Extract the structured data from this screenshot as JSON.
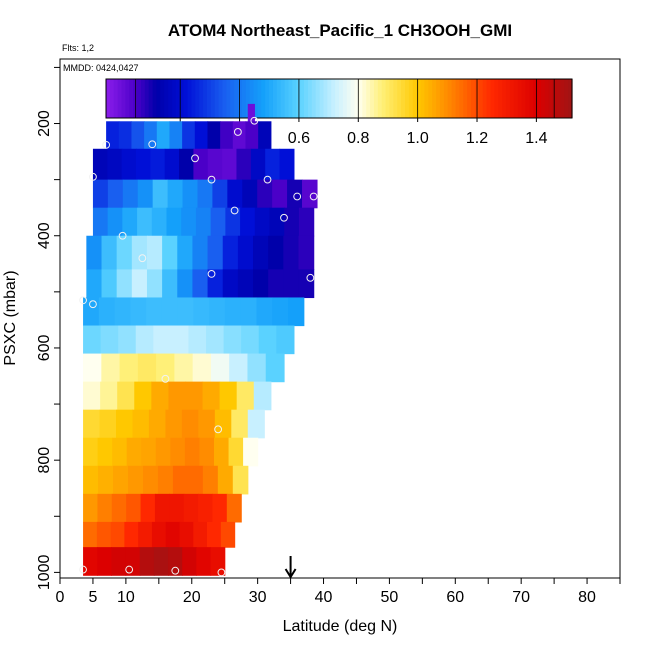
{
  "chart_data": {
    "type": "heatmap",
    "title": "ATOM4 Northeast_Pacific_1 CH3OOH_GMI",
    "annotations": {
      "flights": "Flts: 1,2",
      "dates": "MMDD: 0424,0427"
    },
    "xlabel": "Latitude (deg N)",
    "ylabel": "PSXC (mbar)",
    "xlim": [
      0,
      85
    ],
    "ylim": [
      1010,
      85
    ],
    "x_ticks": [
      0,
      5,
      10,
      20,
      30,
      40,
      50,
      60,
      70,
      80
    ],
    "x_tick_labels": [
      "0",
      "5",
      "10",
      "20",
      "30",
      "40",
      "50",
      "60",
      "70",
      "80"
    ],
    "y_ticks": [
      200,
      400,
      600,
      800,
      1000
    ],
    "y_tick_labels": [
      "200",
      "400",
      "600",
      "800",
      "1000"
    ],
    "colorbar": {
      "range": [
        -0.05,
        1.52
      ],
      "ticks": [
        0.2,
        0.4,
        0.6,
        0.8,
        1.0,
        1.2,
        1.4
      ],
      "tick_labels": [
        "0.2",
        "0.4",
        "0.6",
        "0.8",
        "1.0",
        "1.2",
        "1.4"
      ]
    },
    "marker": {
      "latitude": 35,
      "symbol": "down-arrow"
    },
    "layers": [
      {
        "p_top": 165,
        "p_bot": 196,
        "x0": 28.5,
        "x1": 29.5,
        "values": [
          0.0
        ]
      },
      {
        "p_top": 196,
        "p_bot": 245,
        "x0": 7.0,
        "x1": 32.0,
        "values": [
          0.25,
          0.27,
          0.33,
          0.4,
          0.5,
          0.42,
          0.28,
          0.22,
          0.12,
          0.06,
          0.02,
          0.05,
          0.15
        ]
      },
      {
        "p_top": 245,
        "p_bot": 300,
        "x0": 5.0,
        "x1": 35.5,
        "values": [
          0.15,
          0.17,
          0.2,
          0.22,
          0.24,
          0.2,
          0.12,
          0.05,
          0.03,
          0.02,
          0.08,
          0.18,
          0.25,
          0.22
        ]
      },
      {
        "p_top": 300,
        "p_bot": 350,
        "x0": 5.0,
        "x1": 39.0,
        "values": [
          0.3,
          0.35,
          0.4,
          0.45,
          0.55,
          0.5,
          0.45,
          0.4,
          0.3,
          0.2,
          0.15,
          0.08,
          0.05,
          0.1,
          0.03
        ]
      },
      {
        "p_top": 350,
        "p_bot": 400,
        "x0": 5.0,
        "x1": 38.5,
        "values": [
          0.4,
          0.45,
          0.5,
          0.55,
          0.52,
          0.48,
          0.45,
          0.42,
          0.35,
          0.28,
          0.22,
          0.18,
          0.15,
          0.1,
          0.08
        ]
      },
      {
        "p_top": 400,
        "p_bot": 460,
        "x0": 4.0,
        "x1": 38.5,
        "values": [
          0.45,
          0.55,
          0.62,
          0.68,
          0.7,
          0.6,
          0.5,
          0.42,
          0.35,
          0.25,
          0.2,
          0.15,
          0.12,
          0.1,
          0.08
        ]
      },
      {
        "p_top": 460,
        "p_bot": 510,
        "x0": 4.0,
        "x1": 38.5,
        "values": [
          0.5,
          0.58,
          0.66,
          0.72,
          0.66,
          0.55,
          0.45,
          0.35,
          0.25,
          0.18,
          0.15,
          0.12,
          0.1,
          0.1,
          0.1
        ]
      },
      {
        "p_top": 510,
        "p_bot": 560,
        "x0": 3.5,
        "x1": 37.0,
        "values": [
          0.5,
          0.52,
          0.53,
          0.54,
          0.55,
          0.55,
          0.55,
          0.54,
          0.53,
          0.52,
          0.52,
          0.5,
          0.49,
          0.48
        ]
      },
      {
        "p_top": 560,
        "p_bot": 610,
        "x0": 3.5,
        "x1": 35.5,
        "values": [
          0.62,
          0.64,
          0.66,
          0.7,
          0.72,
          0.72,
          0.7,
          0.68,
          0.65,
          0.63,
          0.6,
          0.58
        ]
      },
      {
        "p_top": 610,
        "p_bot": 660,
        "x0": 3.5,
        "x1": 34.0,
        "values": [
          0.8,
          0.85,
          0.88,
          0.9,
          0.88,
          0.85,
          0.82,
          0.78,
          0.72,
          0.66,
          0.6
        ]
      },
      {
        "p_top": 660,
        "p_bot": 710,
        "x0": 3.5,
        "x1": 32.0,
        "values": [
          0.82,
          0.86,
          0.92,
          1.0,
          1.05,
          1.08,
          1.08,
          1.05,
          1.0,
          0.9,
          0.7
        ]
      },
      {
        "p_top": 710,
        "p_bot": 760,
        "x0": 3.5,
        "x1": 31.0,
        "values": [
          0.95,
          0.97,
          1.0,
          1.02,
          1.05,
          1.08,
          1.1,
          1.08,
          1.02,
          0.9,
          0.72
        ]
      },
      {
        "p_top": 760,
        "p_bot": 810,
        "x0": 3.5,
        "x1": 30.0,
        "values": [
          0.98,
          1.0,
          1.02,
          1.05,
          1.06,
          1.08,
          1.1,
          1.12,
          1.1,
          1.05,
          0.95,
          0.8
        ]
      },
      {
        "p_top": 810,
        "p_bot": 860,
        "x0": 3.5,
        "x1": 28.5,
        "values": [
          1.02,
          1.04,
          1.06,
          1.08,
          1.1,
          1.12,
          1.15,
          1.15,
          1.12,
          1.05,
          0.92
        ]
      },
      {
        "p_top": 860,
        "p_bot": 910,
        "x0": 3.5,
        "x1": 27.5,
        "values": [
          1.08,
          1.12,
          1.15,
          1.18,
          1.25,
          1.32,
          1.32,
          1.3,
          1.28,
          1.25,
          1.15
        ]
      },
      {
        "p_top": 910,
        "p_bot": 955,
        "x0": 3.5,
        "x1": 26.5,
        "values": [
          1.15,
          1.18,
          1.2,
          1.25,
          1.3,
          1.35,
          1.38,
          1.35,
          1.3,
          1.25,
          1.2
        ]
      },
      {
        "p_top": 955,
        "p_bot": 1005,
        "x0": 3.5,
        "x1": 25.0,
        "values": [
          1.38,
          1.4,
          1.42,
          1.42,
          1.48,
          1.5,
          1.48,
          1.42,
          1.38,
          1.35
        ]
      }
    ],
    "samples": [
      {
        "lat": 29.5,
        "p": 195
      },
      {
        "lat": 27.0,
        "p": 215
      },
      {
        "lat": 7.0,
        "p": 238
      },
      {
        "lat": 14.0,
        "p": 237
      },
      {
        "lat": 20.5,
        "p": 262
      },
      {
        "lat": 5.0,
        "p": 295
      },
      {
        "lat": 23.0,
        "p": 300
      },
      {
        "lat": 31.5,
        "p": 300
      },
      {
        "lat": 36.0,
        "p": 330
      },
      {
        "lat": 38.5,
        "p": 330
      },
      {
        "lat": 26.5,
        "p": 355
      },
      {
        "lat": 34.0,
        "p": 368
      },
      {
        "lat": 9.5,
        "p": 400
      },
      {
        "lat": 12.5,
        "p": 440
      },
      {
        "lat": 23.0,
        "p": 468
      },
      {
        "lat": 38.0,
        "p": 475
      },
      {
        "lat": 3.5,
        "p": 515
      },
      {
        "lat": 5.0,
        "p": 522
      },
      {
        "lat": 16.0,
        "p": 655
      },
      {
        "lat": 24.0,
        "p": 745
      },
      {
        "lat": 3.5,
        "p": 995
      },
      {
        "lat": 10.5,
        "p": 995
      },
      {
        "lat": 17.5,
        "p": 997
      },
      {
        "lat": 24.5,
        "p": 1000
      }
    ]
  }
}
